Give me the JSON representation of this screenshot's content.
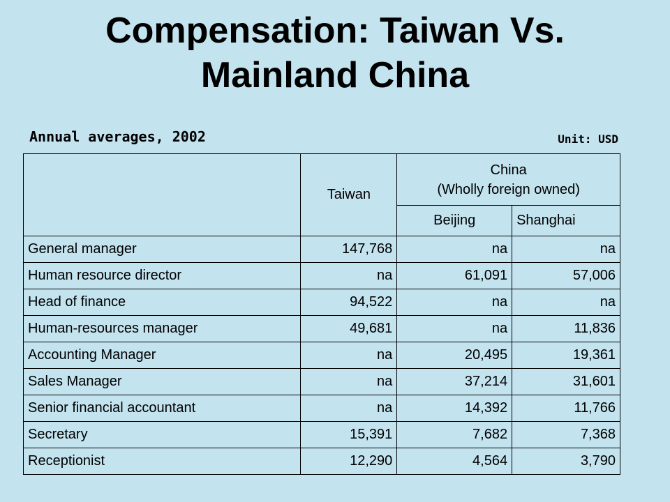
{
  "title": {
    "line1": "Compensation:  Taiwan Vs.",
    "line2": "Mainland China"
  },
  "subtitle": "Annual averages, 2002",
  "unit": "Unit: USD",
  "table": {
    "headers": {
      "taiwan": "Taiwan",
      "china_line1": "China",
      "china_line2": "(Wholly foreign owned)",
      "beijing": "Beijing",
      "shanghai": "Shanghai"
    },
    "rows": [
      {
        "role": "General manager",
        "taiwan": "147,768",
        "beijing": "na",
        "shanghai": "na"
      },
      {
        "role": "Human resource director",
        "taiwan": "na",
        "beijing": "61,091",
        "shanghai": "57,006"
      },
      {
        "role": "Head of finance",
        "taiwan": "94,522",
        "beijing": "na",
        "shanghai": "na"
      },
      {
        "role": "Human-resources manager",
        "taiwan": "49,681",
        "beijing": "na",
        "shanghai": "11,836"
      },
      {
        "role": "Accounting Manager",
        "taiwan": "na",
        "beijing": "20,495",
        "shanghai": "19,361"
      },
      {
        "role": "Sales Manager",
        "taiwan": "na",
        "beijing": "37,214",
        "shanghai": "31,601"
      },
      {
        "role": "Senior financial accountant",
        "taiwan": "na",
        "beijing": "14,392",
        "shanghai": "11,766"
      },
      {
        "role": "Secretary",
        "taiwan": "15,391",
        "beijing": "7,682",
        "shanghai": "7,368"
      },
      {
        "role": "Receptionist",
        "taiwan": "12,290",
        "beijing": "4,564",
        "shanghai": "3,790"
      }
    ]
  },
  "colors": {
    "background": "#c3e3ef",
    "text": "#000000"
  }
}
